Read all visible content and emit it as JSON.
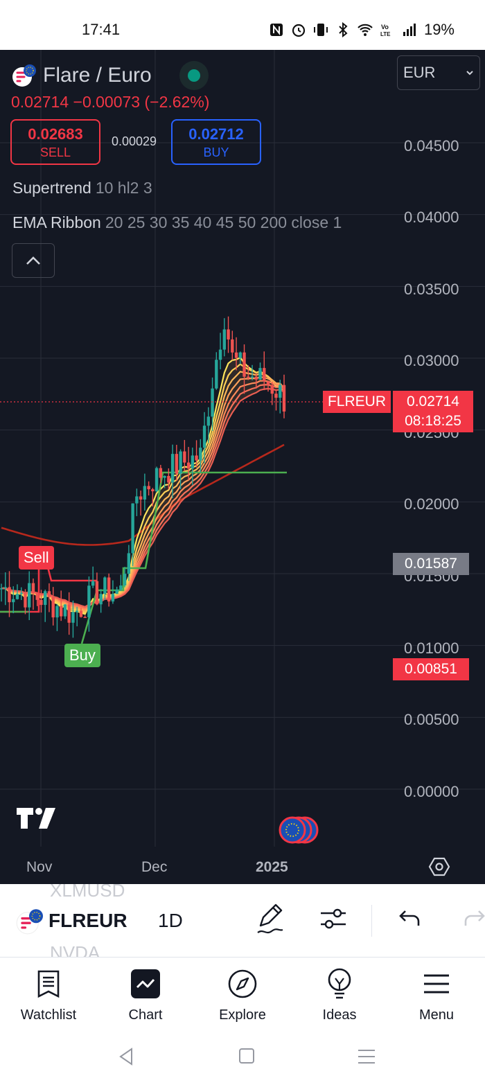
{
  "status_bar": {
    "time": "17:41",
    "battery": "19%",
    "icons": [
      "nfc-icon",
      "alarm-icon",
      "vibrate-icon",
      "bluetooth-icon",
      "wifi-icon",
      "volte-icon",
      "signal-icon"
    ]
  },
  "symbol": {
    "title": "Flare / Euro",
    "logo_icon": "flare-logo-icon",
    "market_status_color": "#089981",
    "price_change": "0.02714  −0.00073 (−2.62%)"
  },
  "trade": {
    "sell_price": "0.02683",
    "sell_label": "SELL",
    "spread": "0.00029",
    "buy_price": "0.02712",
    "buy_label": "BUY"
  },
  "indicators": [
    {
      "name": "Supertrend",
      "args": "10 hl2 3"
    },
    {
      "name": "EMA Ribbon",
      "args": "20 25 30 35 40 45 50 200 close 1"
    }
  ],
  "currency_select": {
    "value": "EUR"
  },
  "price_axis": [
    "0.04500",
    "0.04000",
    "0.03500",
    "0.03000",
    "0.02500",
    "0.02000",
    "0.01500",
    "0.01000",
    "0.00500",
    "0.00000"
  ],
  "time_axis": [
    "Nov",
    "Dec",
    "2025"
  ],
  "tags": {
    "symbol": "FLREUR",
    "last_price": "0.02714",
    "countdown": "08:18:25",
    "low": "0.01587",
    "high": "0.00851"
  },
  "signals": {
    "sell": "Sell",
    "buy": "Buy"
  },
  "colors": {
    "up": "#26a69a",
    "down": "#ef5350",
    "supertrend_up": "#4caf50",
    "supertrend_down": "#f23645",
    "ema200": "#b7281c",
    "background": "#141823"
  },
  "chart_data": {
    "type": "candlestick",
    "symbol": "FLREUR",
    "interval": "1D",
    "x": [
      "Nov",
      "Dec",
      "2025"
    ],
    "ylim": [
      0.0,
      0.047
    ],
    "last_price": 0.02714,
    "series": [
      {
        "name": "Supertrend",
        "type": "step-line"
      },
      {
        "name": "EMA Ribbon",
        "type": "ribbon"
      }
    ]
  },
  "toolbar": {
    "ghost_above": "XLMUSD",
    "symbol": "FLREUR",
    "interval": "1D",
    "ghost_below": "NVDA",
    "icons": [
      "draw-icon",
      "indicators-icon",
      "undo-icon",
      "redo-icon"
    ]
  },
  "nav": {
    "items": [
      {
        "label": "Watchlist",
        "icon": "watchlist-icon"
      },
      {
        "label": "Chart",
        "icon": "chart-icon"
      },
      {
        "label": "Explore",
        "icon": "compass-icon"
      },
      {
        "label": "Ideas",
        "icon": "lightbulb-icon"
      },
      {
        "label": "Menu",
        "icon": "hamburger-icon"
      }
    ]
  }
}
